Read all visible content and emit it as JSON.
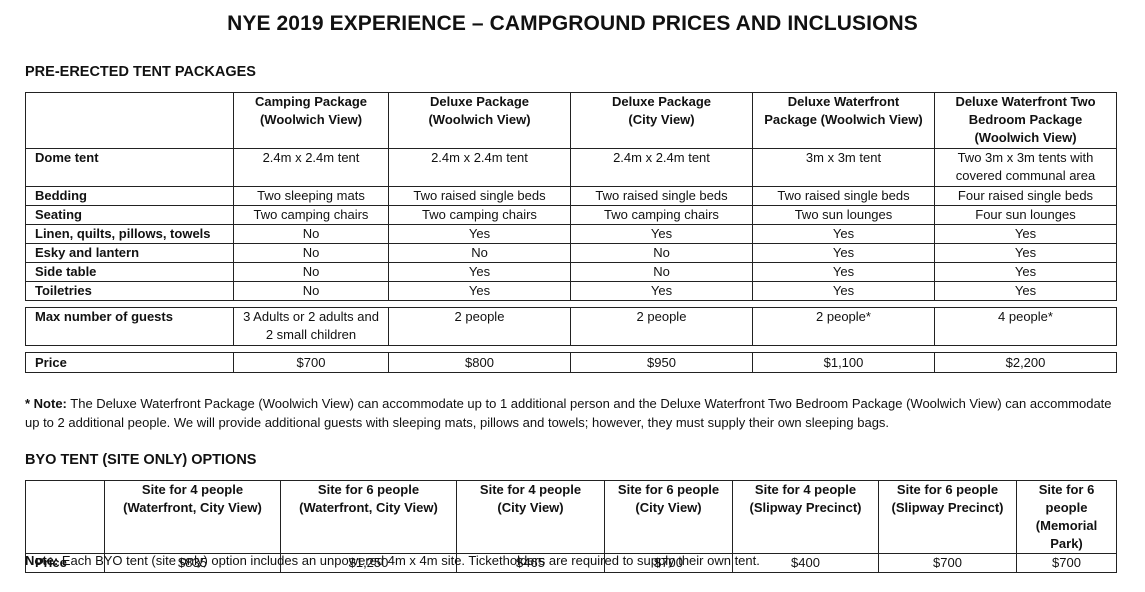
{
  "title": "NYE 2019 EXPERIENCE – CAMPGROUND PRICES AND INCLUSIONS",
  "pre_erected": {
    "heading": "PRE-ERECTED TENT PACKAGES",
    "headers": [
      [
        "Camping Package",
        "(Woolwich View)"
      ],
      [
        "Deluxe Package",
        "(Woolwich View)"
      ],
      [
        "Deluxe Package",
        "(City View)"
      ],
      [
        "Deluxe Waterfront",
        "Package (Woolwich View)"
      ],
      [
        "Deluxe Waterfront Two",
        "Bedroom Package",
        "(Woolwich View)"
      ]
    ],
    "rows": [
      {
        "label": "Dome tent",
        "cells": [
          "2.4m x 2.4m tent",
          "2.4m x 2.4m tent",
          "2.4m x 2.4m tent",
          "3m x 3m tent",
          "Two 3m x 3m tents with covered communal area"
        ]
      },
      {
        "label": "Bedding",
        "cells": [
          "Two sleeping mats",
          "Two raised single beds",
          "Two raised single beds",
          "Two raised single beds",
          "Four raised single beds"
        ]
      },
      {
        "label": "Seating",
        "cells": [
          "Two camping chairs",
          "Two camping chairs",
          "Two camping chairs",
          "Two sun lounges",
          "Four sun lounges"
        ]
      },
      {
        "label": "Linen, quilts, pillows, towels",
        "cells": [
          "No",
          "Yes",
          "Yes",
          "Yes",
          "Yes"
        ]
      },
      {
        "label": "Esky and lantern",
        "cells": [
          "No",
          "No",
          "No",
          "Yes",
          "Yes"
        ]
      },
      {
        "label": "Side table",
        "cells": [
          "No",
          "Yes",
          "No",
          "Yes",
          "Yes"
        ]
      },
      {
        "label": "Toiletries",
        "cells": [
          "No",
          "Yes",
          "Yes",
          "Yes",
          "Yes"
        ]
      }
    ],
    "guests": {
      "label": "Max number of guests",
      "cells": [
        "3 Adults or 2 adults and 2 small children",
        "2 people",
        "2 people",
        "2 people*",
        "4 people*"
      ]
    },
    "price": {
      "label": "Price",
      "cells": [
        "$700",
        "$800",
        "$950",
        "$1,100",
        "$2,200"
      ]
    }
  },
  "note1": {
    "prefix": "* Note:",
    "text": " The Deluxe Waterfront Package (Woolwich View) can accommodate up to 1 additional person and the Deluxe Waterfront Two Bedroom Package (Woolwich View) can accommodate up to 2 additional people. We will provide additional guests with sleeping mats, pillows and towels; however, they must supply their own sleeping bags."
  },
  "byo": {
    "heading": "BYO TENT (SITE ONLY) OPTIONS",
    "headers": [
      [
        "Site for 4 people",
        "(Waterfront, City View)"
      ],
      [
        "Site for 6 people",
        "(Waterfront, City View)"
      ],
      [
        "Site for 4 people",
        "(City View)"
      ],
      [
        "Site for 6 people",
        "(City View)"
      ],
      [
        "Site for 4 people",
        "(Slipway Precinct)"
      ],
      [
        "Site for 6 people",
        "(Slipway Precinct)"
      ],
      [
        "Site for 6 people",
        "(Memorial Park)"
      ]
    ],
    "price": {
      "label": "Price",
      "cells": [
        "$835",
        "$1,250",
        "$465",
        "$700",
        "$400",
        "$700",
        "$700"
      ]
    }
  },
  "note2": {
    "prefix": "Note:",
    "text": " Each BYO tent (site only) option includes an unpowered 4m x 4m site. Ticketholders are required to supply their own tent."
  }
}
